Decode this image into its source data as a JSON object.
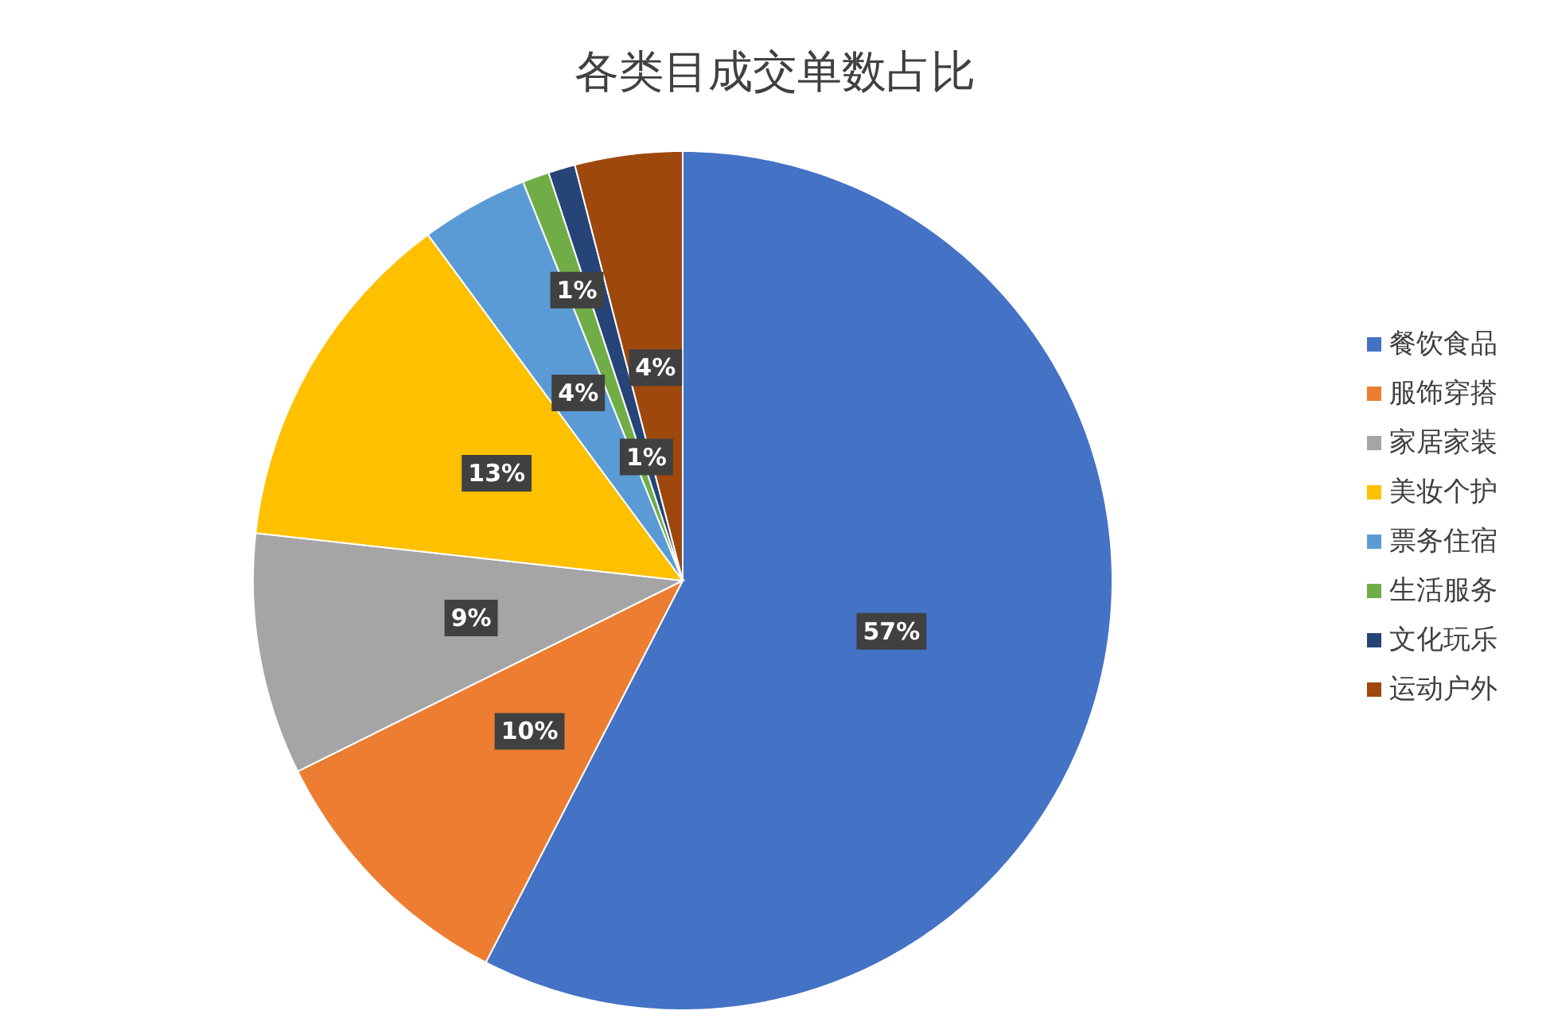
{
  "chart_data": {
    "type": "pie",
    "title": "各类目成交单数占比",
    "categories": [
      "餐饮食品",
      "服饰穿搭",
      "家居家装",
      "美妆个护",
      "票务住宿",
      "生活服务",
      "文化玩乐",
      "运动户外"
    ],
    "values": [
      57,
      10,
      9,
      13,
      4,
      1,
      1,
      4
    ],
    "value_labels": [
      "57%",
      "10%",
      "9%",
      "13%",
      "4%",
      "1%",
      "1%",
      "4%"
    ],
    "colors": [
      "#4472c4",
      "#ed7d31",
      "#a5a5a5",
      "#ffc000",
      "#5b9bd5",
      "#70ad47",
      "#264478",
      "#9e480e"
    ],
    "legend": "right"
  }
}
